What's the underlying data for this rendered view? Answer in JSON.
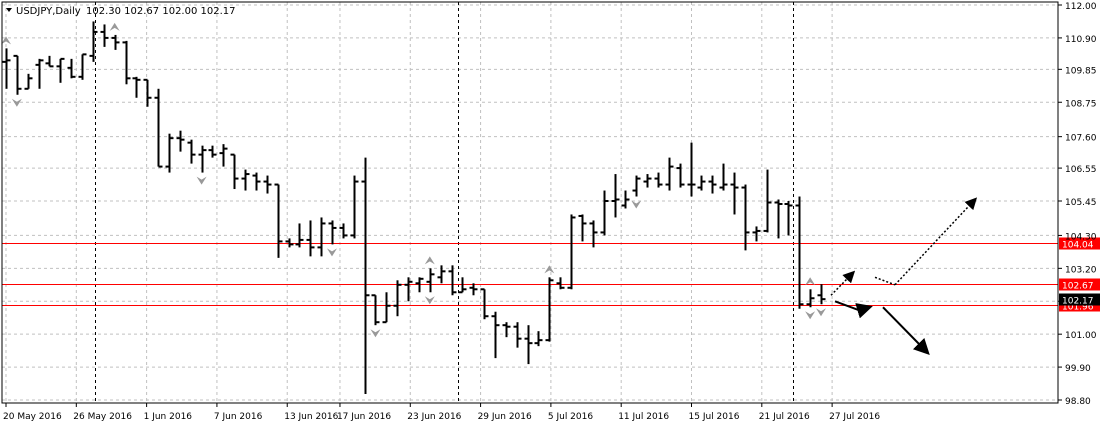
{
  "header": {
    "symbol_label": "USDJPY,Daily",
    "ohlc_label": "102.30 102.67 102.00 102.17"
  },
  "colors": {
    "background": "#ffffff",
    "grid": "#c0c0c0",
    "bars": "#000000",
    "level_lines": "#ff0000",
    "level_label_bg": "#ff0000",
    "level_label_text": "#ffffff",
    "fractal_arrows": "#999999",
    "current_price_label_bg": "#000000"
  },
  "chart_data": {
    "type": "ohlc",
    "title": "USDJPY,Daily",
    "ylim": [
      98.7,
      112.1
    ],
    "y_ticks": [
      "112.00",
      "110.90",
      "109.85",
      "108.75",
      "107.60",
      "106.55",
      "105.45",
      "104.30",
      "103.20",
      "102.10",
      "101.00",
      "99.90",
      "98.80"
    ],
    "x_tick_labels": [
      "20 May 2016",
      "26 May 2016",
      "1 Jun 2016",
      "7 Jun 2016",
      "13 Jun 2016",
      "17 Jun 2016",
      "23 Jun 2016",
      "29 Jun 2016",
      "5 Jul 2016",
      "11 Jul 2016",
      "15 Jul 2016",
      "21 Jul 2016",
      "27 Jul 2016"
    ],
    "x_tick_bar_index": [
      0,
      4,
      8,
      12,
      16,
      19,
      23,
      27,
      31,
      35,
      39,
      43,
      47
    ],
    "grid": true,
    "bars": [
      {
        "o": 110.1,
        "h": 110.55,
        "l": 109.2,
        "c": 110.15
      },
      {
        "o": 110.3,
        "h": 110.3,
        "l": 109.0,
        "c": 109.2
      },
      {
        "o": 109.2,
        "h": 109.7,
        "l": 109.2,
        "c": 109.55
      },
      {
        "o": 110.0,
        "h": 110.2,
        "l": 109.2,
        "c": 110.15
      },
      {
        "o": 110.05,
        "h": 110.3,
        "l": 109.95,
        "c": 109.95
      },
      {
        "o": 109.95,
        "h": 110.2,
        "l": 109.4,
        "c": 110.2
      },
      {
        "o": 109.9,
        "h": 110.2,
        "l": 109.55,
        "c": 109.6
      },
      {
        "o": 109.6,
        "h": 110.35,
        "l": 109.5,
        "c": 110.35
      },
      {
        "o": 110.3,
        "h": 111.45,
        "l": 110.1,
        "c": 111.1
      },
      {
        "o": 111.1,
        "h": 111.35,
        "l": 110.6,
        "c": 110.9
      },
      {
        "o": 110.9,
        "h": 111.0,
        "l": 110.5,
        "c": 110.75
      },
      {
        "o": 110.75,
        "h": 110.8,
        "l": 109.35,
        "c": 109.55
      },
      {
        "o": 109.55,
        "h": 109.6,
        "l": 108.9,
        "c": 109.5
      },
      {
        "o": 109.5,
        "h": 109.5,
        "l": 108.6,
        "c": 108.9
      },
      {
        "o": 108.9,
        "h": 109.2,
        "l": 106.6,
        "c": 106.6
      },
      {
        "o": 106.6,
        "h": 107.7,
        "l": 106.4,
        "c": 107.55
      },
      {
        "o": 107.55,
        "h": 107.8,
        "l": 107.1,
        "c": 107.5
      },
      {
        "o": 107.4,
        "h": 107.5,
        "l": 106.7,
        "c": 107.0
      },
      {
        "o": 107.0,
        "h": 107.3,
        "l": 106.4,
        "c": 107.15
      },
      {
        "o": 107.15,
        "h": 107.3,
        "l": 106.9,
        "c": 107.0
      },
      {
        "o": 107.05,
        "h": 107.35,
        "l": 106.6,
        "c": 107.2
      },
      {
        "o": 107.0,
        "h": 107.0,
        "l": 105.85,
        "c": 106.2
      },
      {
        "o": 106.2,
        "h": 106.5,
        "l": 105.8,
        "c": 106.35
      },
      {
        "o": 106.3,
        "h": 106.4,
        "l": 105.8,
        "c": 106.1
      },
      {
        "o": 106.1,
        "h": 106.3,
        "l": 105.7,
        "c": 106.0
      },
      {
        "o": 106.0,
        "h": 106.0,
        "l": 103.55,
        "c": 104.1
      },
      {
        "o": 104.1,
        "h": 104.2,
        "l": 103.9,
        "c": 104.0
      },
      {
        "o": 104.0,
        "h": 104.7,
        "l": 103.9,
        "c": 104.15
      },
      {
        "o": 104.15,
        "h": 104.8,
        "l": 103.6,
        "c": 103.9
      },
      {
        "o": 103.9,
        "h": 104.9,
        "l": 103.6,
        "c": 104.7
      },
      {
        "o": 104.7,
        "h": 104.8,
        "l": 104.0,
        "c": 104.55
      },
      {
        "o": 104.55,
        "h": 104.7,
        "l": 104.2,
        "c": 104.3
      },
      {
        "o": 104.3,
        "h": 106.3,
        "l": 104.2,
        "c": 106.1
      },
      {
        "o": 106.1,
        "h": 106.9,
        "l": 99.0,
        "c": 102.3
      },
      {
        "o": 102.3,
        "h": 102.3,
        "l": 101.3,
        "c": 101.4
      },
      {
        "o": 101.4,
        "h": 102.4,
        "l": 101.4,
        "c": 101.95
      },
      {
        "o": 101.95,
        "h": 102.8,
        "l": 101.6,
        "c": 102.65
      },
      {
        "o": 102.65,
        "h": 102.9,
        "l": 102.1,
        "c": 102.75
      },
      {
        "o": 102.7,
        "h": 102.9,
        "l": 102.4,
        "c": 102.85
      },
      {
        "o": 102.75,
        "h": 103.2,
        "l": 102.4,
        "c": 103.0
      },
      {
        "o": 102.9,
        "h": 103.3,
        "l": 102.7,
        "c": 103.1
      },
      {
        "o": 103.1,
        "h": 103.3,
        "l": 102.3,
        "c": 102.4
      },
      {
        "o": 102.4,
        "h": 102.9,
        "l": 102.4,
        "c": 102.5
      },
      {
        "o": 102.55,
        "h": 102.7,
        "l": 102.3,
        "c": 102.5
      },
      {
        "o": 102.5,
        "h": 102.5,
        "l": 101.5,
        "c": 101.6
      },
      {
        "o": 101.6,
        "h": 101.75,
        "l": 100.2,
        "c": 101.3
      },
      {
        "o": 101.3,
        "h": 101.4,
        "l": 100.9,
        "c": 101.25
      },
      {
        "o": 101.25,
        "h": 101.4,
        "l": 100.55,
        "c": 100.85
      },
      {
        "o": 100.85,
        "h": 101.3,
        "l": 100.0,
        "c": 100.7
      },
      {
        "o": 100.7,
        "h": 101.1,
        "l": 100.6,
        "c": 100.8
      },
      {
        "o": 100.8,
        "h": 102.9,
        "l": 100.75,
        "c": 102.8
      },
      {
        "o": 102.7,
        "h": 102.9,
        "l": 102.5,
        "c": 102.55
      },
      {
        "o": 102.55,
        "h": 105.0,
        "l": 102.5,
        "c": 104.9
      },
      {
        "o": 104.95,
        "h": 105.0,
        "l": 104.1,
        "c": 104.7
      },
      {
        "o": 104.7,
        "h": 104.8,
        "l": 103.9,
        "c": 104.4
      },
      {
        "o": 104.4,
        "h": 105.8,
        "l": 104.3,
        "c": 105.45
      },
      {
        "o": 105.45,
        "h": 106.35,
        "l": 104.9,
        "c": 105.5
      },
      {
        "o": 105.3,
        "h": 105.8,
        "l": 105.2,
        "c": 105.5
      },
      {
        "o": 105.8,
        "h": 106.3,
        "l": 105.6,
        "c": 106.2
      },
      {
        "o": 106.1,
        "h": 106.35,
        "l": 105.9,
        "c": 106.2
      },
      {
        "o": 106.2,
        "h": 106.4,
        "l": 105.9,
        "c": 106.0
      },
      {
        "o": 106.0,
        "h": 106.9,
        "l": 105.8,
        "c": 106.6
      },
      {
        "o": 106.55,
        "h": 106.7,
        "l": 105.9,
        "c": 106.0
      },
      {
        "o": 106.0,
        "h": 107.4,
        "l": 105.6,
        "c": 106.0
      },
      {
        "o": 105.9,
        "h": 106.3,
        "l": 105.8,
        "c": 106.1
      },
      {
        "o": 106.1,
        "h": 106.3,
        "l": 105.7,
        "c": 106.0
      },
      {
        "o": 105.9,
        "h": 106.7,
        "l": 105.8,
        "c": 106.0
      },
      {
        "o": 106.0,
        "h": 106.4,
        "l": 105.0,
        "c": 105.9
      },
      {
        "o": 105.9,
        "h": 106.0,
        "l": 103.8,
        "c": 104.4
      },
      {
        "o": 104.4,
        "h": 104.6,
        "l": 104.1,
        "c": 104.45
      },
      {
        "o": 104.45,
        "h": 106.5,
        "l": 104.4,
        "c": 105.4
      },
      {
        "o": 105.4,
        "h": 105.5,
        "l": 104.2,
        "c": 105.35
      },
      {
        "o": 105.35,
        "h": 105.45,
        "l": 104.3,
        "c": 105.3
      },
      {
        "o": 105.3,
        "h": 105.6,
        "l": 101.85,
        "c": 102.0
      },
      {
        "o": 102.0,
        "h": 102.5,
        "l": 101.9,
        "c": 102.2
      },
      {
        "o": 102.3,
        "h": 102.67,
        "l": 102.0,
        "c": 102.17
      }
    ],
    "x_label_bar_index_note": "",
    "dashed_vertical_lines_at_bar": [
      8,
      33,
      51,
      74
    ],
    "level_lines": [
      {
        "price": 104.04,
        "label": "104.04"
      },
      {
        "price": 102.67,
        "label": "102.67"
      },
      {
        "price": 101.96,
        "label": "101.96"
      }
    ],
    "current_price_label": "102.17",
    "fractal_up": [
      0,
      9,
      33,
      42,
      62
    ],
    "fractal_down": [
      1,
      15,
      25,
      29,
      33,
      49,
      62,
      68
    ],
    "scenario_arrows": [
      {
        "from": [
          102.3,
          0
        ],
        "to": [
          103.05,
          1.1
        ],
        "style": "dotted"
      },
      {
        "from": [
          102.9,
          2.2
        ],
        "to": [
          102.65,
          3.2
        ],
        "style": "dotted"
      },
      {
        "from": [
          102.65,
          3.2
        ],
        "to": [
          105.5,
          7.2
        ],
        "style": "dotted"
      },
      {
        "from": [
          102.1,
          0.2
        ],
        "to": [
          101.8,
          1.4
        ],
        "style": "solid"
      },
      {
        "from": [
          101.8,
          1.4
        ],
        "to": [
          101.9,
          1.9
        ],
        "style": "solid"
      },
      {
        "from": [
          101.9,
          2.6
        ],
        "to": [
          100.4,
          4.8
        ],
        "style": "solid"
      }
    ]
  }
}
